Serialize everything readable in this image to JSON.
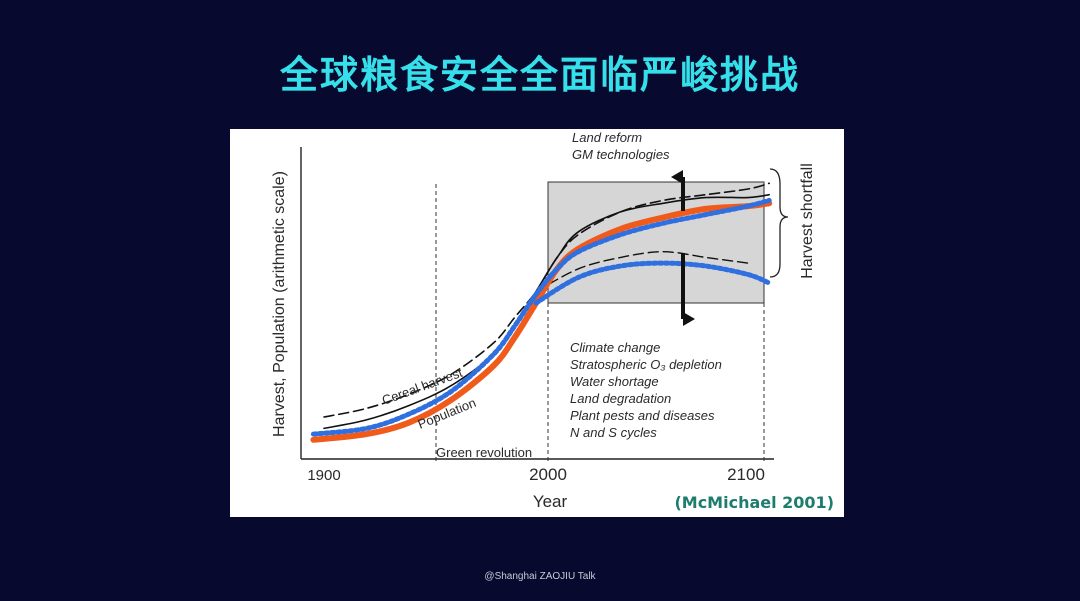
{
  "slide": {
    "title": "全球粮食安全全面临严峻挑战",
    "footer": "@Shanghai ZAOJIU Talk",
    "citation": "(McMichael 2001)"
  },
  "chart_data": {
    "type": "line",
    "title": "",
    "xlabel": "Year",
    "ylabel": "Harvest, Population (arithmetic scale)",
    "x_ticks": [
      "1900",
      "2000",
      "2100"
    ],
    "xlim": [
      1890,
      2115
    ],
    "y_scale": "arithmetic, no tick values shown",
    "grid": false,
    "series": [
      {
        "name": "Cereal harvest",
        "style": "dashed black",
        "x": [
          1900,
          1920,
          1940,
          1960,
          1980,
          1990,
          2000,
          2010,
          2020,
          2040,
          2060,
          2080,
          2100,
          2110
        ],
        "y": [
          0.2,
          0.23,
          0.28,
          0.35,
          0.46,
          0.55,
          0.64,
          0.76,
          0.84,
          0.92,
          0.96,
          0.98,
          1.0,
          1.02
        ]
      },
      {
        "name": "Population",
        "style": "solid black",
        "x": [
          1900,
          1920,
          1940,
          1960,
          1980,
          1990,
          2000,
          2010,
          2020,
          2040,
          2060,
          2080,
          2100,
          2110
        ],
        "y": [
          0.16,
          0.19,
          0.24,
          0.31,
          0.42,
          0.52,
          0.64,
          0.76,
          0.85,
          0.92,
          0.95,
          0.97,
          0.97,
          0.98
        ]
      },
      {
        "name": "",
        "style": "dashed black (harvest shortfall scenario)",
        "x": [
          2000,
          2020,
          2040,
          2060,
          2080,
          2100
        ],
        "y": [
          0.64,
          0.72,
          0.76,
          0.78,
          0.76,
          0.74
        ]
      },
      {
        "name": "",
        "style": "orange thick",
        "x": [
          1895,
          1920,
          1940,
          1960,
          1980,
          1990,
          2000,
          2010,
          2020,
          2040,
          2060,
          2080,
          2100,
          2110
        ],
        "y": [
          0.12,
          0.14,
          0.18,
          0.26,
          0.38,
          0.48,
          0.6,
          0.72,
          0.79,
          0.86,
          0.9,
          0.93,
          0.94,
          0.95
        ]
      },
      {
        "name": "",
        "style": "blue dotted upper",
        "x": [
          1895,
          1920,
          1940,
          1960,
          1980,
          1990,
          2000,
          2010,
          2020,
          2040,
          2060,
          2080,
          2100,
          2110
        ],
        "y": [
          0.14,
          0.16,
          0.21,
          0.29,
          0.42,
          0.52,
          0.63,
          0.72,
          0.78,
          0.84,
          0.88,
          0.91,
          0.94,
          0.96
        ]
      },
      {
        "name": "",
        "style": "blue dotted lower",
        "x": [
          2000,
          2020,
          2040,
          2060,
          2080,
          2100,
          2110
        ],
        "y": [
          0.6,
          0.69,
          0.73,
          0.74,
          0.73,
          0.7,
          0.67
        ]
      }
    ],
    "annotations": {
      "green_revolution": "Green revolution",
      "above_box": [
        "Land reform",
        "GM technologies"
      ],
      "below_box": [
        "Climate change",
        "Stratospheric O₃ depletion",
        "Water shortage",
        "Land degradation",
        "Plant pests and diseases",
        "N and S cycles"
      ],
      "right_brace": "Harvest shortfall"
    }
  }
}
